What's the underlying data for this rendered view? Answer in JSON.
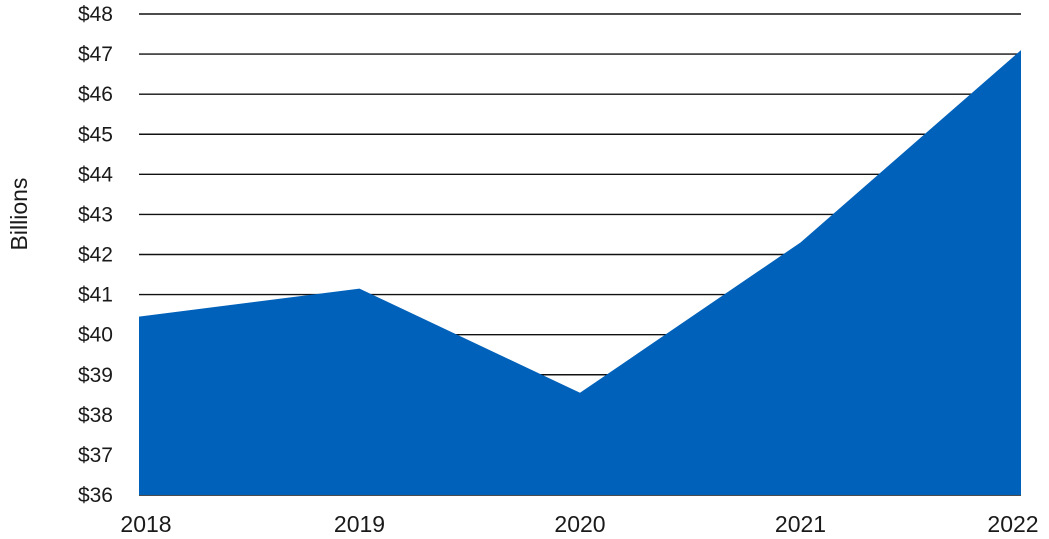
{
  "chart_data": {
    "type": "area",
    "x": [
      "2018",
      "2019",
      "2020",
      "2021",
      "2022"
    ],
    "series": [
      {
        "values": [
          40.45,
          41.15,
          38.55,
          42.3,
          47.1
        ]
      }
    ],
    "ylabel": "Billions",
    "xlabel": "",
    "title": "",
    "ylim": [
      36,
      48
    ],
    "yticks": [
      36,
      37,
      38,
      39,
      40,
      41,
      42,
      43,
      44,
      45,
      46,
      47,
      48
    ],
    "ytick_labels": [
      "$36",
      "$37",
      "$38",
      "$39",
      "$40",
      "$41",
      "$42",
      "$43",
      "$44",
      "$45",
      "$46",
      "$47",
      "$48"
    ],
    "grid": true,
    "legend": "none",
    "colors": {
      "area": "#0061BA",
      "grid": "#111111",
      "text": "#1A1A1A"
    }
  }
}
